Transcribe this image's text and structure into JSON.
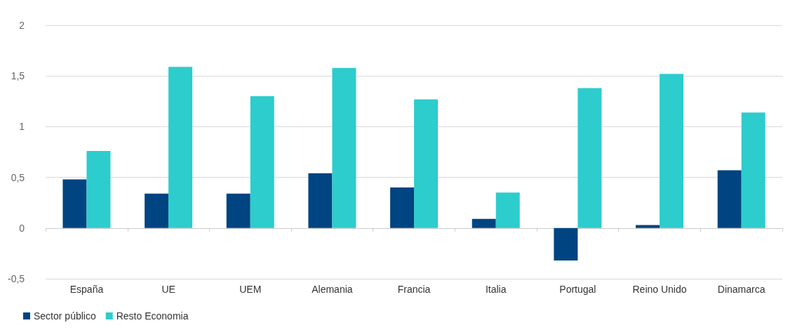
{
  "chart_data": {
    "type": "bar",
    "categories": [
      "España",
      "UE",
      "UEM",
      "Alemania",
      "Francia",
      "Italia",
      "Portugal",
      "Reino Unido",
      "Dinamarca"
    ],
    "series": [
      {
        "name": "Sector público",
        "color": "#004481",
        "values": [
          0.48,
          0.34,
          0.34,
          0.54,
          0.4,
          0.09,
          -0.32,
          0.03,
          0.57
        ]
      },
      {
        "name": "Resto Economia",
        "color": "#2dcccd",
        "values": [
          0.76,
          1.59,
          1.3,
          1.58,
          1.27,
          0.35,
          1.38,
          1.52,
          1.14
        ]
      }
    ],
    "ylim": [
      -0.5,
      2
    ],
    "yticks": [
      {
        "value": -0.5,
        "label": "-0,5"
      },
      0,
      {
        "value": 0.5,
        "label": "0,5"
      },
      1,
      {
        "value": 1.5,
        "label": "1,5"
      },
      2
    ],
    "grid": "y",
    "legend": "bottom left"
  }
}
